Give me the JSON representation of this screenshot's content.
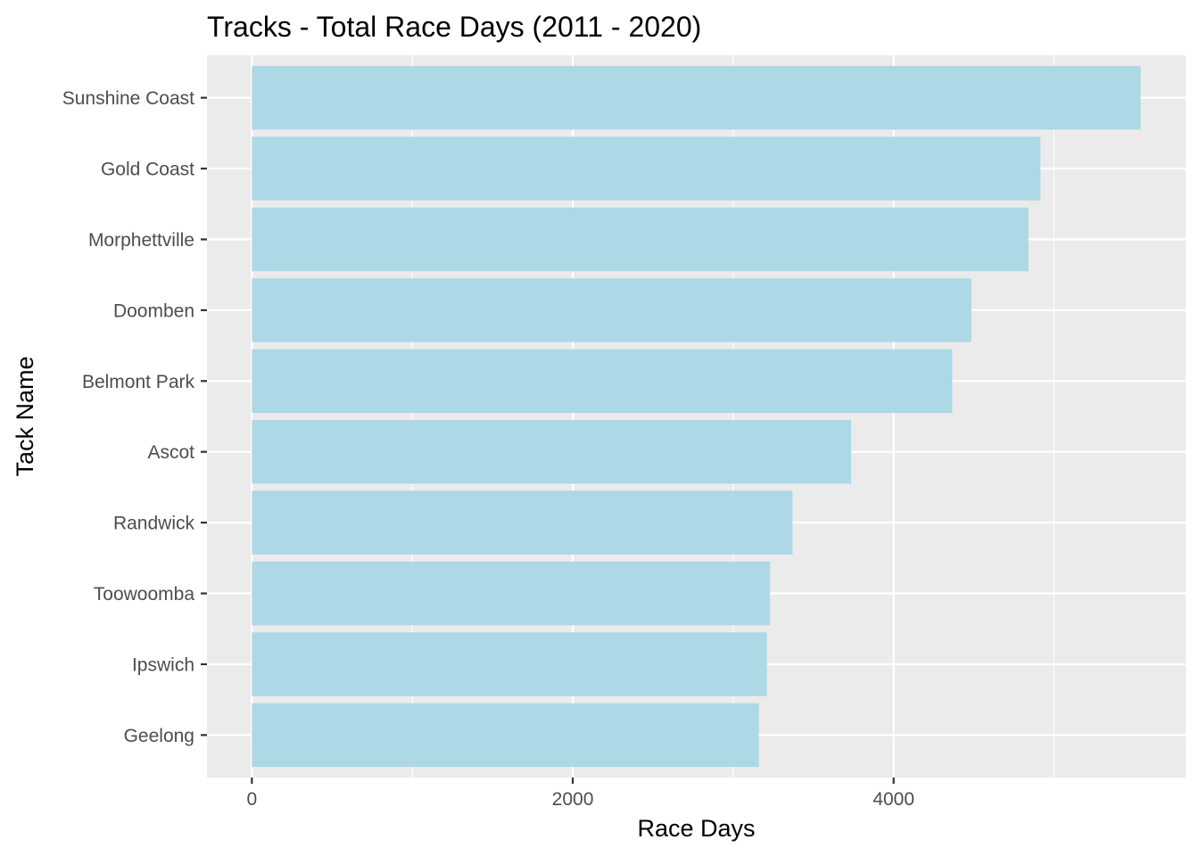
{
  "chart_data": {
    "type": "bar",
    "orientation": "horizontal",
    "title": "Tracks - Total Race Days (2011 - 2020)",
    "xlabel": "Race Days",
    "ylabel": "Tack Name",
    "categories": [
      "Sunshine Coast",
      "Gold Coast",
      "Morphettville",
      "Doomben",
      "Belmont Park",
      "Ascot",
      "Randwick",
      "Toowoomba",
      "Ipswich",
      "Geelong"
    ],
    "values": [
      5540,
      4915,
      4840,
      4485,
      4365,
      3735,
      3370,
      3230,
      3210,
      3160
    ],
    "xlim": [
      -280,
      5820
    ],
    "x_ticks": [
      0,
      2000,
      4000
    ],
    "x_tick_labels": [
      "0",
      "2000",
      "4000"
    ],
    "grid": true,
    "legend": "none",
    "colors": {
      "bar": "#add8e6",
      "panel": "#ebebeb",
      "grid": "#ffffff",
      "tick_text": "#4d4d4d",
      "title_text": "#000000"
    }
  }
}
